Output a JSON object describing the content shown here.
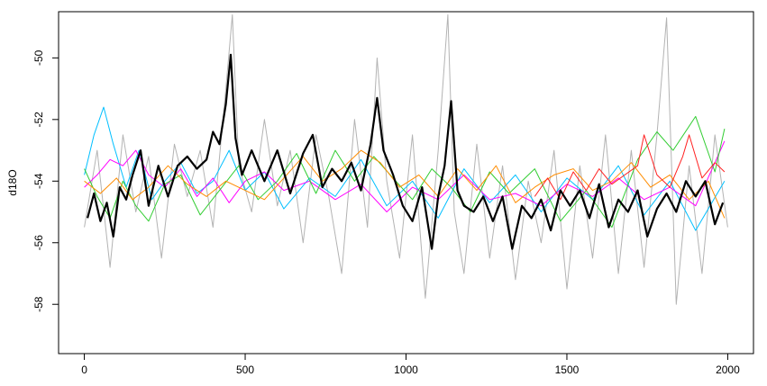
{
  "chart_data": {
    "type": "line",
    "title": "",
    "xlabel": "",
    "ylabel": "d18O",
    "xlim": [
      -80,
      2080
    ],
    "ylim": [
      -59.6,
      -48.5
    ],
    "x_ticks": [
      0,
      500,
      1000,
      1500,
      2000
    ],
    "y_ticks": [
      -58,
      -56,
      -54,
      -52,
      -50
    ],
    "grid": false,
    "legend": "none",
    "series": [
      {
        "color": "#b3b3b3",
        "x": [
          0,
          40,
          80,
          120,
          160,
          200,
          240,
          280,
          320,
          360,
          400,
          440,
          460,
          480,
          520,
          560,
          600,
          640,
          680,
          720,
          760,
          800,
          840,
          880,
          910,
          940,
          980,
          1020,
          1060,
          1100,
          1130,
          1150,
          1180,
          1220,
          1260,
          1300,
          1340,
          1380,
          1420,
          1460,
          1500,
          1540,
          1580,
          1620,
          1660,
          1700,
          1740,
          1780,
          1810,
          1840,
          1880,
          1920,
          1960,
          2000
        ],
        "y": [
          -55.5,
          -53.0,
          -56.8,
          -52.5,
          -55.0,
          -53.2,
          -56.5,
          -52.8,
          -54.5,
          -53.0,
          -55.5,
          -51.0,
          -48.6,
          -53.5,
          -55.0,
          -52.0,
          -54.8,
          -53.0,
          -56.0,
          -52.5,
          -54.5,
          -57.0,
          -52.0,
          -55.5,
          -50.0,
          -54.0,
          -56.5,
          -52.5,
          -57.8,
          -53.0,
          -48.6,
          -55.0,
          -57.0,
          -52.8,
          -56.5,
          -53.5,
          -57.2,
          -54.0,
          -56.0,
          -53.0,
          -57.5,
          -53.5,
          -56.5,
          -52.5,
          -57.0,
          -53.0,
          -56.8,
          -52.5,
          -48.7,
          -58.0,
          -53.5,
          -57.0,
          -52.5,
          -55.5
        ]
      },
      {
        "color": "#00bfff",
        "x": [
          0,
          30,
          60,
          90,
          130,
          170,
          210,
          250,
          300,
          350,
          400,
          450,
          500,
          560,
          620,
          700,
          780,
          860,
          940,
          1020,
          1100,
          1180,
          1260,
          1340,
          1420,
          1500,
          1580,
          1660,
          1740,
          1820,
          1900,
          1990
        ],
        "y": [
          -53.8,
          -52.5,
          -51.6,
          -52.8,
          -54.2,
          -53.0,
          -54.6,
          -54.0,
          -53.4,
          -54.4,
          -54.0,
          -53.0,
          -54.3,
          -53.7,
          -54.9,
          -53.9,
          -54.5,
          -53.3,
          -54.8,
          -54.0,
          -55.2,
          -53.6,
          -54.7,
          -53.8,
          -55.0,
          -53.9,
          -54.6,
          -53.5,
          -55.1,
          -54.0,
          -55.6,
          -54.0
        ]
      },
      {
        "color": "#ff00ff",
        "x": [
          0,
          40,
          80,
          120,
          160,
          200,
          250,
          300,
          350,
          400,
          450,
          500,
          560,
          620,
          700,
          780,
          860,
          940,
          1020,
          1100,
          1180,
          1260,
          1340,
          1420,
          1500,
          1580,
          1660,
          1740,
          1820,
          1900,
          1990
        ],
        "y": [
          -54.2,
          -53.8,
          -53.3,
          -53.5,
          -53.0,
          -53.8,
          -54.2,
          -53.6,
          -54.5,
          -53.9,
          -54.7,
          -54.0,
          -53.7,
          -54.3,
          -54.0,
          -54.6,
          -54.1,
          -55.0,
          -54.2,
          -54.6,
          -53.8,
          -54.6,
          -54.4,
          -54.8,
          -54.1,
          -54.5,
          -53.9,
          -54.6,
          -54.2,
          -54.8,
          -52.7
        ]
      },
      {
        "color": "#32cd32",
        "x": [
          0,
          40,
          80,
          120,
          160,
          200,
          250,
          300,
          360,
          420,
          480,
          540,
          600,
          660,
          720,
          780,
          840,
          900,
          960,
          1020,
          1080,
          1140,
          1200,
          1260,
          1320,
          1400,
          1480,
          1560,
          1640,
          1720,
          1780,
          1830,
          1900,
          1960,
          1990
        ],
        "y": [
          -53.6,
          -54.5,
          -55.2,
          -54.0,
          -54.8,
          -55.3,
          -54.1,
          -53.8,
          -55.1,
          -54.3,
          -53.5,
          -54.6,
          -54.0,
          -53.1,
          -54.4,
          -53.0,
          -54.0,
          -53.2,
          -53.9,
          -54.6,
          -53.6,
          -54.2,
          -55.0,
          -53.7,
          -54.4,
          -53.6,
          -55.3,
          -54.3,
          -55.5,
          -53.3,
          -52.4,
          -53.0,
          -51.9,
          -53.7,
          -52.3
        ]
      },
      {
        "color": "#ff8c00",
        "x": [
          0,
          50,
          100,
          150,
          200,
          260,
          320,
          380,
          440,
          500,
          560,
          620,
          680,
          740,
          800,
          860,
          920,
          980,
          1040,
          1100,
          1160,
          1220,
          1280,
          1340,
          1400,
          1460,
          1520,
          1580,
          1640,
          1700,
          1760,
          1820,
          1880,
          1940,
          1990
        ],
        "y": [
          -54.0,
          -54.4,
          -53.9,
          -54.6,
          -54.2,
          -53.5,
          -54.1,
          -54.5,
          -54.0,
          -54.3,
          -54.6,
          -53.9,
          -53.2,
          -54.0,
          -53.6,
          -53.0,
          -53.4,
          -54.2,
          -53.8,
          -54.5,
          -53.6,
          -54.3,
          -53.5,
          -54.7,
          -54.2,
          -53.8,
          -53.6,
          -54.3,
          -54.0,
          -53.4,
          -54.2,
          -53.8,
          -54.6,
          -54.0,
          -55.2
        ]
      },
      {
        "color": "#ff2020",
        "x": [
          1400,
          1440,
          1480,
          1520,
          1560,
          1600,
          1640,
          1680,
          1720,
          1740,
          1780,
          1820,
          1860,
          1880,
          1920,
          1960,
          1990
        ],
        "y": [
          -54.5,
          -53.9,
          -54.6,
          -53.7,
          -54.3,
          -53.6,
          -54.1,
          -53.8,
          -53.5,
          -52.5,
          -53.8,
          -54.2,
          -53.2,
          -52.5,
          -53.9,
          -53.4,
          -53.7
        ]
      },
      {
        "color": "#000000",
        "x": [
          10,
          30,
          50,
          70,
          90,
          110,
          130,
          150,
          175,
          200,
          230,
          260,
          290,
          320,
          350,
          380,
          400,
          420,
          440,
          455,
          470,
          490,
          520,
          560,
          600,
          640,
          680,
          710,
          740,
          770,
          800,
          830,
          860,
          890,
          910,
          930,
          960,
          990,
          1020,
          1050,
          1080,
          1100,
          1120,
          1140,
          1160,
          1180,
          1210,
          1240,
          1270,
          1300,
          1330,
          1360,
          1390,
          1420,
          1450,
          1480,
          1510,
          1540,
          1570,
          1600,
          1630,
          1660,
          1690,
          1720,
          1750,
          1780,
          1810,
          1840,
          1870,
          1900,
          1930,
          1960,
          1985
        ],
        "y": [
          -55.2,
          -54.4,
          -55.3,
          -54.7,
          -55.8,
          -54.2,
          -54.6,
          -53.8,
          -53.0,
          -54.8,
          -53.5,
          -54.5,
          -53.5,
          -53.2,
          -53.6,
          -53.3,
          -52.4,
          -52.8,
          -51.5,
          -49.9,
          -52.6,
          -53.8,
          -53.0,
          -54.0,
          -53.0,
          -54.4,
          -53.1,
          -52.5,
          -54.2,
          -53.6,
          -54.0,
          -53.4,
          -54.3,
          -52.8,
          -51.3,
          -53.0,
          -53.8,
          -54.8,
          -55.3,
          -54.2,
          -56.2,
          -54.5,
          -53.5,
          -51.4,
          -54.3,
          -54.8,
          -55.0,
          -54.5,
          -55.3,
          -54.5,
          -56.2,
          -54.8,
          -55.2,
          -54.6,
          -55.6,
          -54.3,
          -54.8,
          -54.3,
          -55.2,
          -54.1,
          -55.5,
          -54.6,
          -55.0,
          -54.3,
          -55.8,
          -54.9,
          -54.4,
          -55.0,
          -54.0,
          -54.5,
          -54.0,
          -55.4,
          -54.7
        ]
      }
    ]
  }
}
